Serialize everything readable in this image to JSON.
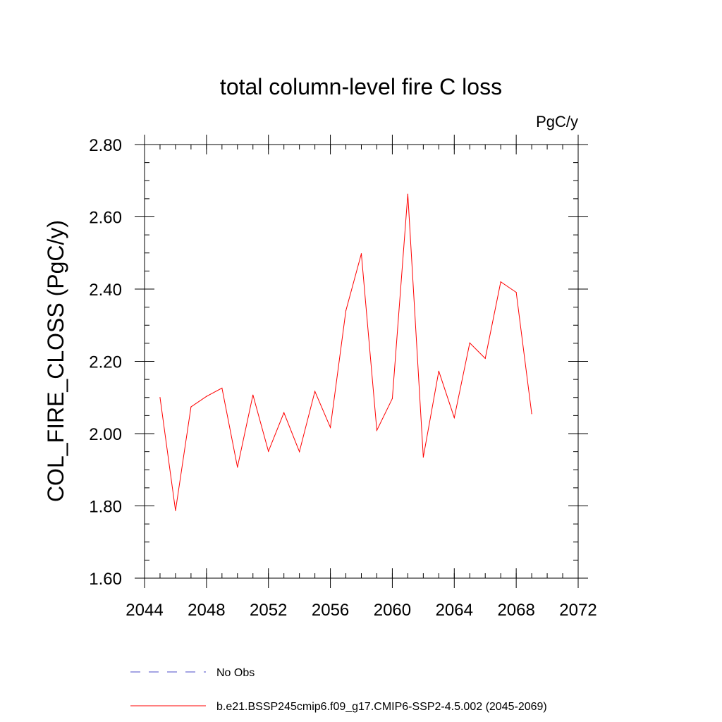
{
  "chart_data": {
    "type": "line",
    "title": "total column-level fire C loss",
    "units_label": "PgC/y",
    "xlabel": "",
    "ylabel": "COL_FIRE_CLOSS  (PgC/y)",
    "xlim": [
      2044,
      2072
    ],
    "ylim": [
      1.6,
      2.8
    ],
    "x_ticks": [
      2044,
      2048,
      2052,
      2056,
      2060,
      2064,
      2068,
      2072
    ],
    "x_tick_labels": [
      "2044",
      "2048",
      "2052",
      "2056",
      "2060",
      "2064",
      "2068",
      "2072"
    ],
    "x_minor_step": 1,
    "y_ticks": [
      1.6,
      1.8,
      2.0,
      2.2,
      2.4,
      2.6,
      2.8
    ],
    "y_tick_labels": [
      "1.60",
      "1.80",
      "2.00",
      "2.20",
      "2.40",
      "2.60",
      "2.80"
    ],
    "y_minor_step": 0.05,
    "grid": false,
    "legend_position": "bottom-left",
    "series": [
      {
        "name": "No Obs",
        "style": "dashed",
        "color": "#4b4bc8",
        "x": [],
        "values": []
      },
      {
        "name": "b.e21.BSSP245cmip6.f09_g17.CMIP6-SSP2-4.5.002 (2045-2069)",
        "style": "solid",
        "color": "#ff0000",
        "x": [
          2045,
          2046,
          2047,
          2048,
          2049,
          2050,
          2051,
          2052,
          2053,
          2054,
          2055,
          2056,
          2057,
          2058,
          2059,
          2060,
          2061,
          2062,
          2063,
          2064,
          2065,
          2066,
          2067,
          2068,
          2069
        ],
        "values": [
          2.1,
          1.787,
          2.074,
          2.103,
          2.126,
          1.907,
          2.107,
          1.951,
          2.058,
          1.95,
          2.117,
          2.017,
          2.34,
          2.498,
          2.009,
          2.097,
          2.663,
          1.935,
          2.173,
          2.044,
          2.251,
          2.208,
          2.42,
          2.391,
          2.055
        ]
      }
    ]
  }
}
